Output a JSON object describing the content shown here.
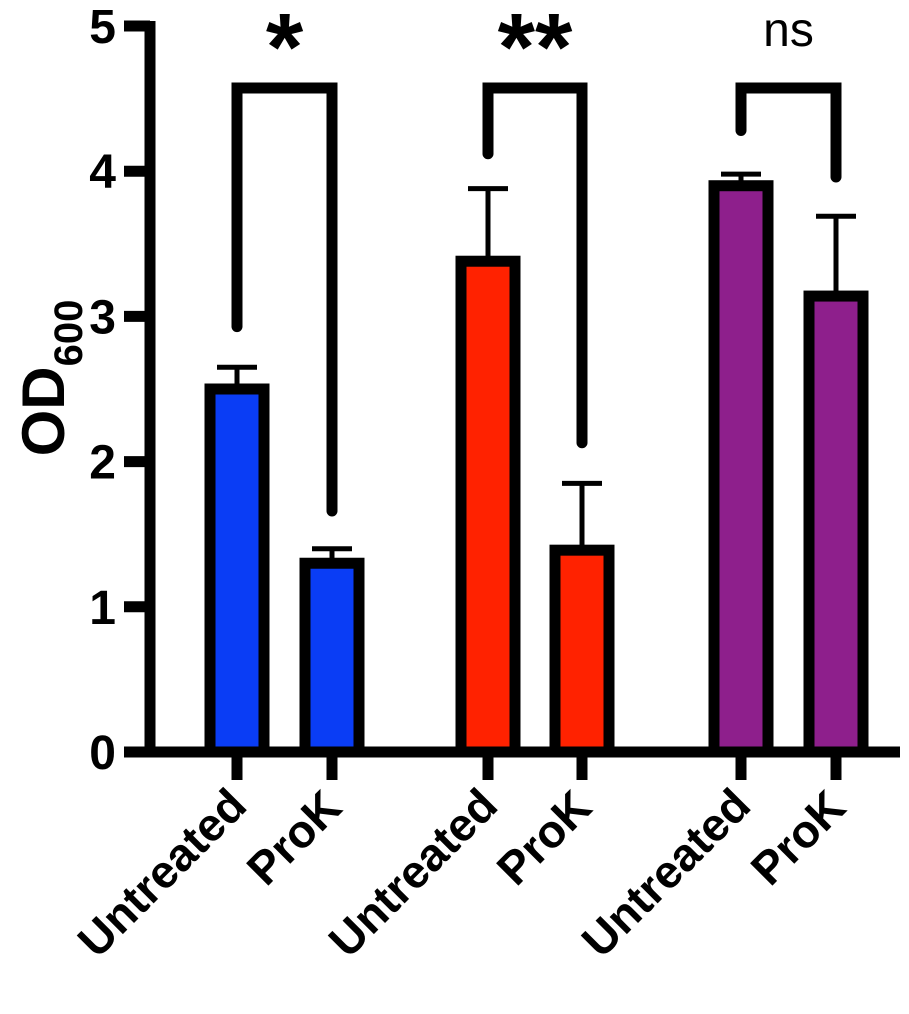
{
  "chart_data": {
    "type": "bar",
    "title": "",
    "xlabel": "",
    "ylabel": "OD",
    "ylabel_subscript": "600",
    "ylim": [
      0,
      5
    ],
    "yticks": [
      "0",
      "1",
      "2",
      "3",
      "4",
      "5"
    ],
    "bars": [
      {
        "group": 1,
        "label": "Untreated",
        "value": 2.5,
        "error": 0.15,
        "color": "#0A3DF5"
      },
      {
        "group": 1,
        "label": "ProK",
        "value": 1.3,
        "error": 0.1,
        "color": "#0A3DF5"
      },
      {
        "group": 2,
        "label": "Untreated",
        "value": 3.38,
        "error": 0.5,
        "color": "#FF2200"
      },
      {
        "group": 2,
        "label": "ProK",
        "value": 1.39,
        "error": 0.46,
        "color": "#FF2200"
      },
      {
        "group": 3,
        "label": "Untreated",
        "value": 3.9,
        "error": 0.08,
        "color": "#8E1F8C"
      },
      {
        "group": 3,
        "label": "ProK",
        "value": 3.14,
        "error": 0.55,
        "color": "#8E1F8C"
      }
    ],
    "significance": [
      {
        "group": 1,
        "label": "*",
        "left_bottom": 2.93,
        "right_bottom": 1.66
      },
      {
        "group": 2,
        "label": "**",
        "left_bottom": 4.12,
        "right_bottom": 2.13
      },
      {
        "group": 3,
        "label": "ns",
        "left_bottom": 4.28,
        "right_bottom": 3.96
      }
    ]
  }
}
